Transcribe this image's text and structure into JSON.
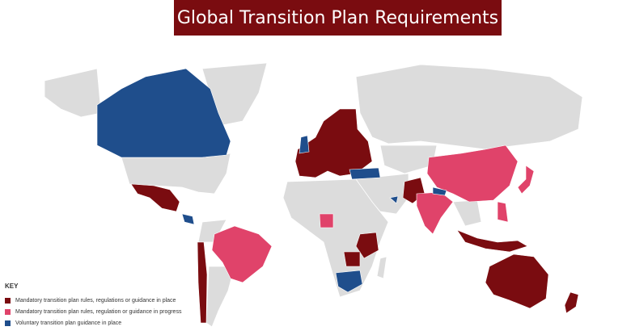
{
  "title": "Global Transition Plan Requirements",
  "key": {
    "title": "KEY",
    "items": [
      {
        "label": "Mandatory transition plan rules, regulations or guidance in place",
        "color": "#7a0c10"
      },
      {
        "label": "Mandatory transition plan rules, regulation or guidance in progress",
        "color": "#e0436a"
      },
      {
        "label": "Voluntary transition plan guidance in place",
        "color": "#1f4e8c"
      }
    ]
  }
}
